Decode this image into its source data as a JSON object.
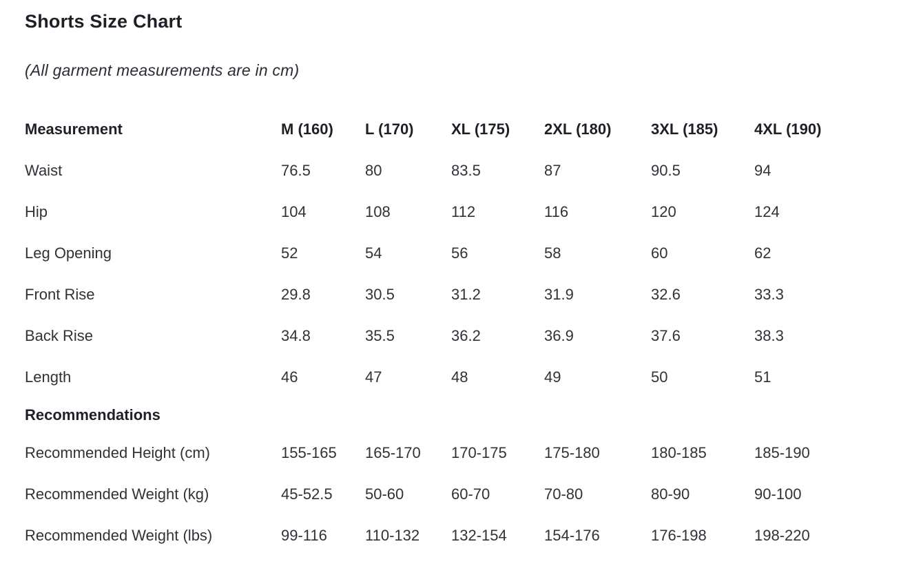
{
  "page": {
    "title": "Shorts Size Chart",
    "subtitle": "(All garment measurements are in cm)"
  },
  "table": {
    "columns": [
      {
        "label": "Measurement"
      },
      {
        "label": "M (160)"
      },
      {
        "label": "L (170)"
      },
      {
        "label": "XL (175)"
      },
      {
        "label": "2XL (180)"
      },
      {
        "label": "3XL (185)"
      },
      {
        "label": "4XL (190)"
      }
    ],
    "rows": [
      {
        "label": "Waist",
        "values": [
          "76.5",
          "80",
          "83.5",
          "87",
          "90.5",
          "94"
        ]
      },
      {
        "label": "Hip",
        "values": [
          "104",
          "108",
          "112",
          "116",
          "120",
          "124"
        ]
      },
      {
        "label": "Leg Opening",
        "values": [
          "52",
          "54",
          "56",
          "58",
          "60",
          "62"
        ]
      },
      {
        "label": "Front Rise",
        "values": [
          "29.8",
          "30.5",
          "31.2",
          "31.9",
          "32.6",
          "33.3"
        ]
      },
      {
        "label": "Back Rise",
        "values": [
          "34.8",
          "35.5",
          "36.2",
          "36.9",
          "37.6",
          "38.3"
        ]
      },
      {
        "label": "Length",
        "values": [
          "46",
          "47",
          "48",
          "49",
          "50",
          "51"
        ]
      },
      {
        "label": "Recommendations",
        "section": true,
        "values": []
      },
      {
        "label": "Recommended Height (cm)",
        "values": [
          "155-165",
          "165-170",
          "170-175",
          "175-180",
          "180-185",
          "185-190"
        ]
      },
      {
        "label": "Recommended Weight (kg)",
        "values": [
          "45-52.5",
          "50-60",
          "60-70",
          "70-80",
          "80-90",
          "90-100"
        ]
      },
      {
        "label": "Recommended Weight (lbs)",
        "values": [
          "99-116",
          "110-132",
          "132-154",
          "154-176",
          "176-198",
          "198-220"
        ]
      }
    ]
  },
  "colors": {
    "background": "#ffffff",
    "heading_text": "#1d2127",
    "body_text": "#2f3237"
  }
}
